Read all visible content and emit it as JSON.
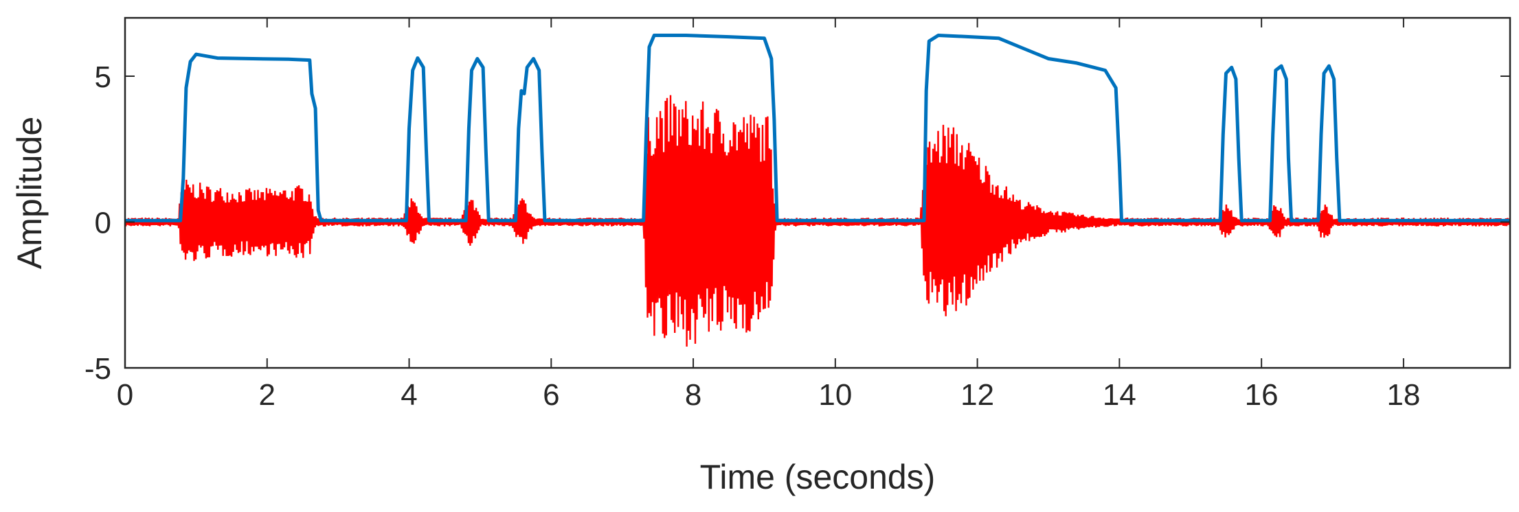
{
  "chart_data": {
    "type": "line",
    "title": "",
    "xlabel": "Time (seconds)",
    "ylabel": "Amplitude",
    "xlim": [
      0,
      19.5
    ],
    "ylim": [
      -5,
      7
    ],
    "x_ticks": [
      0,
      2,
      4,
      6,
      8,
      10,
      12,
      14,
      16,
      18
    ],
    "y_ticks": [
      -5,
      0,
      5
    ],
    "grid": false,
    "legend": "none",
    "series": [
      {
        "color": "#0072BD",
        "style": "envelope",
        "points": [
          [
            0.0,
            0.05
          ],
          [
            0.78,
            0.05
          ],
          [
            0.82,
            1.5
          ],
          [
            0.86,
            4.6
          ],
          [
            0.92,
            5.5
          ],
          [
            1.0,
            5.75
          ],
          [
            1.3,
            5.62
          ],
          [
            1.8,
            5.6
          ],
          [
            2.3,
            5.58
          ],
          [
            2.6,
            5.55
          ],
          [
            2.63,
            4.4
          ],
          [
            2.68,
            3.9
          ],
          [
            2.72,
            0.4
          ],
          [
            2.76,
            0.05
          ],
          [
            3.96,
            0.05
          ],
          [
            4.0,
            3.2
          ],
          [
            4.05,
            5.2
          ],
          [
            4.12,
            5.62
          ],
          [
            4.2,
            5.3
          ],
          [
            4.24,
            2.5
          ],
          [
            4.28,
            0.05
          ],
          [
            4.8,
            0.05
          ],
          [
            4.84,
            3.2
          ],
          [
            4.88,
            5.2
          ],
          [
            4.96,
            5.6
          ],
          [
            5.04,
            5.3
          ],
          [
            5.08,
            2.5
          ],
          [
            5.12,
            0.05
          ],
          [
            5.5,
            0.05
          ],
          [
            5.54,
            3.2
          ],
          [
            5.58,
            4.5
          ],
          [
            5.62,
            4.4
          ],
          [
            5.66,
            5.3
          ],
          [
            5.75,
            5.6
          ],
          [
            5.83,
            5.2
          ],
          [
            5.87,
            2.4
          ],
          [
            5.91,
            0.05
          ],
          [
            7.3,
            0.05
          ],
          [
            7.34,
            3.2
          ],
          [
            7.38,
            6.0
          ],
          [
            7.45,
            6.4
          ],
          [
            7.9,
            6.4
          ],
          [
            8.5,
            6.35
          ],
          [
            9.0,
            6.3
          ],
          [
            9.1,
            5.6
          ],
          [
            9.14,
            3.5
          ],
          [
            9.18,
            0.05
          ],
          [
            11.25,
            0.05
          ],
          [
            11.28,
            4.5
          ],
          [
            11.32,
            6.2
          ],
          [
            11.45,
            6.4
          ],
          [
            11.9,
            6.35
          ],
          [
            12.3,
            6.3
          ],
          [
            12.6,
            6.0
          ],
          [
            13.0,
            5.6
          ],
          [
            13.4,
            5.45
          ],
          [
            13.8,
            5.2
          ],
          [
            13.95,
            4.6
          ],
          [
            14.0,
            2.0
          ],
          [
            14.03,
            0.05
          ],
          [
            15.42,
            0.05
          ],
          [
            15.46,
            3.0
          ],
          [
            15.5,
            5.1
          ],
          [
            15.58,
            5.3
          ],
          [
            15.64,
            4.9
          ],
          [
            15.68,
            2.2
          ],
          [
            15.72,
            0.05
          ],
          [
            16.12,
            0.05
          ],
          [
            16.16,
            3.0
          ],
          [
            16.2,
            5.2
          ],
          [
            16.28,
            5.35
          ],
          [
            16.35,
            4.9
          ],
          [
            16.38,
            2.2
          ],
          [
            16.42,
            0.05
          ],
          [
            16.8,
            0.05
          ],
          [
            16.84,
            3.0
          ],
          [
            16.88,
            5.1
          ],
          [
            16.95,
            5.35
          ],
          [
            17.02,
            4.9
          ],
          [
            17.06,
            2.2
          ],
          [
            17.1,
            0.05
          ],
          [
            19.5,
            0.05
          ]
        ]
      },
      {
        "color": "#FF0000",
        "style": "oscillation",
        "envelope": [
          [
            0.0,
            0.15
          ],
          [
            0.75,
            0.15
          ],
          [
            0.78,
            1.0
          ],
          [
            0.85,
            1.5
          ],
          [
            1.2,
            1.25
          ],
          [
            1.8,
            1.15
          ],
          [
            2.2,
            1.2
          ],
          [
            2.5,
            1.3
          ],
          [
            2.62,
            1.1
          ],
          [
            2.66,
            0.3
          ],
          [
            2.7,
            0.15
          ],
          [
            3.9,
            0.15
          ],
          [
            3.98,
            0.6
          ],
          [
            4.05,
            0.9
          ],
          [
            4.14,
            0.5
          ],
          [
            4.2,
            0.15
          ],
          [
            4.72,
            0.15
          ],
          [
            4.8,
            0.6
          ],
          [
            4.88,
            0.9
          ],
          [
            4.96,
            0.5
          ],
          [
            5.02,
            0.15
          ],
          [
            5.45,
            0.15
          ],
          [
            5.52,
            0.6
          ],
          [
            5.6,
            0.9
          ],
          [
            5.68,
            0.5
          ],
          [
            5.75,
            0.15
          ],
          [
            7.3,
            0.15
          ],
          [
            7.35,
            3.5
          ],
          [
            7.45,
            4.2
          ],
          [
            7.7,
            4.4
          ],
          [
            8.2,
            4.1
          ],
          [
            8.6,
            3.9
          ],
          [
            9.05,
            3.7
          ],
          [
            9.12,
            2.0
          ],
          [
            9.16,
            0.15
          ],
          [
            11.2,
            0.15
          ],
          [
            11.25,
            2.5
          ],
          [
            11.4,
            3.3
          ],
          [
            11.55,
            3.5
          ],
          [
            11.8,
            3.1
          ],
          [
            12.0,
            2.4
          ],
          [
            12.3,
            1.5
          ],
          [
            12.6,
            0.8
          ],
          [
            13.0,
            0.45
          ],
          [
            13.5,
            0.25
          ],
          [
            13.9,
            0.15
          ],
          [
            15.4,
            0.15
          ],
          [
            15.45,
            0.5
          ],
          [
            15.5,
            0.75
          ],
          [
            15.58,
            0.45
          ],
          [
            15.63,
            0.15
          ],
          [
            16.1,
            0.15
          ],
          [
            16.15,
            0.5
          ],
          [
            16.2,
            0.75
          ],
          [
            16.28,
            0.45
          ],
          [
            16.33,
            0.15
          ],
          [
            16.78,
            0.15
          ],
          [
            16.83,
            0.5
          ],
          [
            16.88,
            0.75
          ],
          [
            16.96,
            0.45
          ],
          [
            17.01,
            0.15
          ],
          [
            19.5,
            0.15
          ]
        ]
      }
    ]
  }
}
